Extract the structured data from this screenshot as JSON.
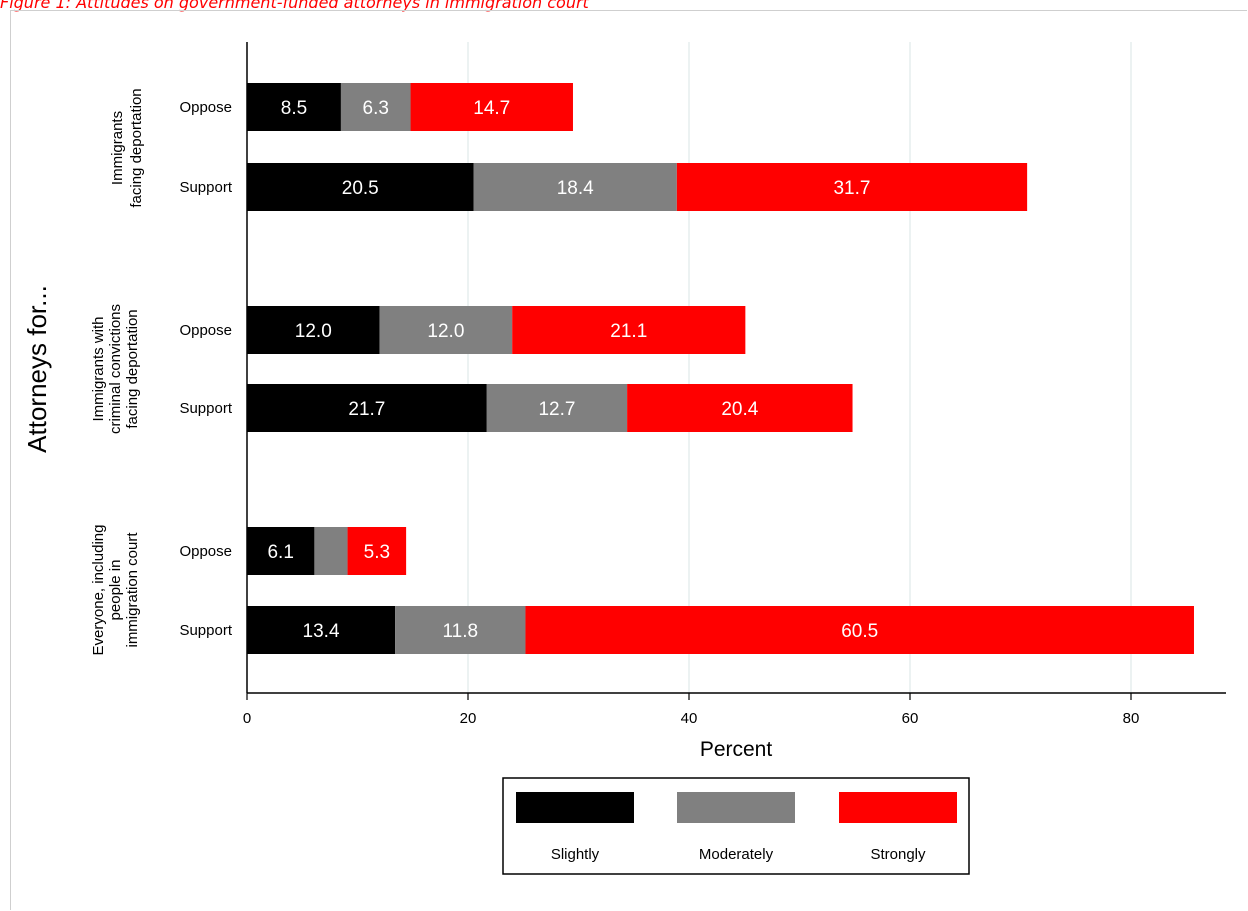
{
  "figure_title": "Figure 1: Attitudes on government-funded attorneys in immigration court",
  "colors": {
    "slightly": "#000000",
    "moderately": "#808080",
    "strongly": "#ff0000",
    "grid": "#dfe8e8",
    "title": "#ff0000"
  },
  "chart_data": {
    "type": "bar",
    "orientation": "horizontal",
    "stacked": true,
    "xlabel": "Percent",
    "ylabel": "Attorneys for...",
    "xlim": [
      0,
      88
    ],
    "xticks": [
      0,
      20,
      40,
      60,
      80
    ],
    "grid": "vertical",
    "legend_position": "bottom",
    "group_labels": [
      [
        "Immigrants",
        "facing deportation"
      ],
      [
        "Immigrants with",
        "criminal convictions",
        "facing deportation"
      ],
      [
        "Everyone, including",
        "people in",
        "immigration court"
      ]
    ],
    "rows": [
      {
        "group": 0,
        "label": "Oppose",
        "values": [
          8.5,
          6.3,
          14.7
        ],
        "labels": [
          "8.5",
          "6.3",
          "14.7"
        ]
      },
      {
        "group": 0,
        "label": "Support",
        "values": [
          20.5,
          18.4,
          31.7
        ],
        "labels": [
          "20.5",
          "18.4",
          "31.7"
        ]
      },
      {
        "group": 1,
        "label": "Oppose",
        "values": [
          12.0,
          12.0,
          21.1
        ],
        "labels": [
          "12.0",
          "12.0",
          "21.1"
        ]
      },
      {
        "group": 1,
        "label": "Support",
        "values": [
          21.7,
          12.7,
          20.4
        ],
        "labels": [
          "21.7",
          "12.7",
          "20.4"
        ]
      },
      {
        "group": 2,
        "label": "Oppose",
        "values": [
          6.1,
          3.0,
          5.3
        ],
        "labels": [
          "6.1",
          "",
          "5.3"
        ]
      },
      {
        "group": 2,
        "label": "Support",
        "values": [
          13.4,
          11.8,
          60.5
        ],
        "labels": [
          "13.4",
          "11.8",
          "60.5"
        ]
      }
    ],
    "series": [
      {
        "name": "Slightly",
        "color": "#000000"
      },
      {
        "name": "Moderately",
        "color": "#808080"
      },
      {
        "name": "Strongly",
        "color": "#ff0000"
      }
    ]
  }
}
